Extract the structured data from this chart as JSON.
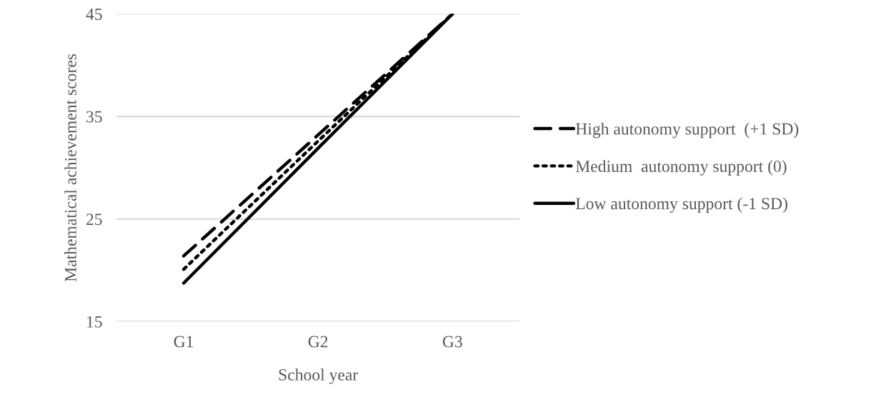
{
  "chart_data": {
    "type": "line",
    "xlabel": "School year",
    "ylabel": "Mathematical achievement scores",
    "categories": [
      "G1",
      "G2",
      "G3"
    ],
    "series": [
      {
        "name": "High autonomy support  (+1 SD)",
        "color": "#000000",
        "line_style": "dashed",
        "values": [
          21.4,
          33.2,
          45
        ]
      },
      {
        "name": "Medium  autonomy support (0)",
        "color": "#000000",
        "line_style": "dotted",
        "values": [
          20.1,
          32.6,
          45
        ]
      },
      {
        "name": "Low autonomy support (-1 SD)",
        "color": "#000000",
        "line_style": "solid",
        "values": [
          18.75,
          31.9,
          45
        ]
      }
    ],
    "ylim": [
      15,
      45
    ],
    "yticks": [
      15,
      25,
      35,
      45
    ],
    "grid": "y",
    "legend": "right",
    "marker": "none"
  }
}
